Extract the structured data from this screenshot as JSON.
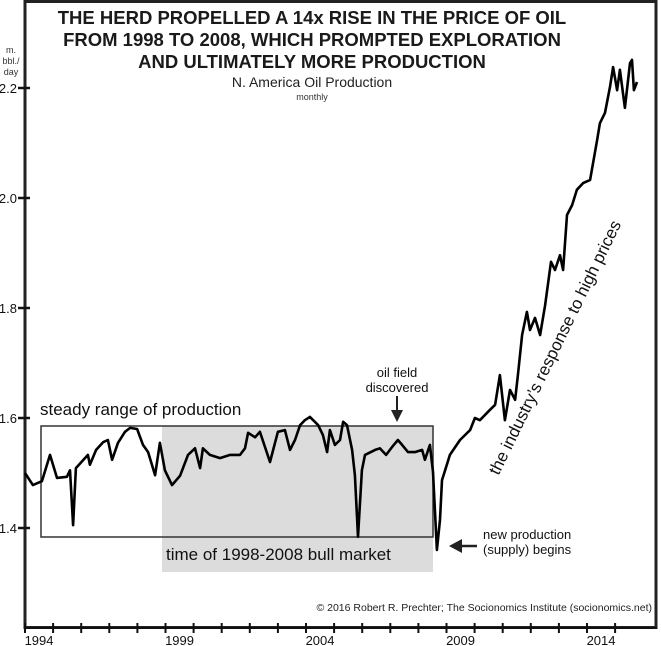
{
  "chart_data": {
    "type": "line",
    "title": "THE HERD PROPELLED A 14x RISE IN THE PRICE OF OIL FROM 1998 TO 2008, WHICH PROMPTED EXPLORATION AND ULTIMATELY MORE PRODUCTION",
    "title_lines": [
      "THE HERD PROPELLED A 14x RISE IN THE PRICE OF OIL",
      "FROM 1998 TO 2008, WHICH PROMPTED EXPLORATION",
      "AND ULTIMATELY MORE PRODUCTION"
    ],
    "subtitle": "N. America Oil Production",
    "subtitle2": "monthly",
    "ylabel_lines": [
      "m.",
      "bbl./",
      "day"
    ],
    "xlabel": "",
    "xlim": [
      1994,
      2015.9
    ],
    "ylim": [
      1.4,
      2.2
    ],
    "y_ticks": [
      "2.2",
      "2.0",
      "1.8",
      "1.6",
      "1.4"
    ],
    "x_tick_labels": [
      "1994",
      "1999",
      "2004",
      "2009",
      "2014"
    ],
    "grid": false,
    "line_color": "#000000",
    "shade_color": "#dcdcdc",
    "series": [
      {
        "x": [
          1994.0,
          1994.28,
          1994.6,
          1994.89,
          1995.14,
          1995.49,
          1995.6,
          1995.71,
          1995.81,
          1996.24,
          1996.31,
          1996.53,
          1996.78,
          1996.95,
          1997.1,
          1997.31,
          1997.56,
          1997.74,
          1997.99,
          1998.2,
          1998.38,
          1998.63,
          1998.8,
          1998.98,
          1999.23,
          1999.52,
          1999.8,
          2000.05,
          2000.23,
          2000.33,
          2000.58,
          2000.94,
          2001.3,
          2001.65,
          2001.83,
          2001.94,
          2002.19,
          2002.36,
          2002.72,
          2003.0,
          2003.25,
          2003.43,
          2003.61,
          2003.79,
          2003.96,
          2004.14,
          2004.43,
          2004.6,
          2004.75,
          2004.85,
          2005.03,
          2005.21,
          2005.32,
          2005.46,
          2005.64,
          2005.74,
          2005.85,
          2005.99,
          2006.1,
          2006.46,
          2006.63,
          2006.85,
          2007.06,
          2007.27,
          2007.42,
          2007.63,
          2007.88,
          2008.13,
          2008.23,
          2008.41,
          2008.52,
          2008.66,
          2008.77,
          2008.84,
          2008.95,
          2009.12,
          2009.48,
          2009.84,
          2010.01,
          2010.19,
          2010.55,
          2010.73,
          2010.9,
          2011.08,
          2011.26,
          2011.44,
          2011.54,
          2011.69,
          2011.86,
          2011.97,
          2012.15,
          2012.33,
          2012.51,
          2012.72,
          2012.86,
          2013.04,
          2013.15,
          2013.29,
          2013.47,
          2013.64,
          2013.86,
          2014.11,
          2014.36,
          2014.46,
          2014.64,
          2014.82,
          2014.93,
          2015.07,
          2015.17,
          2015.35,
          2015.53,
          2015.6,
          2015.67,
          2015.78
        ],
        "y": [
          1.5,
          1.478,
          1.485,
          1.533,
          1.491,
          1.493,
          1.505,
          1.405,
          1.509,
          1.533,
          1.515,
          1.542,
          1.556,
          1.56,
          1.524,
          1.555,
          1.575,
          1.582,
          1.58,
          1.551,
          1.538,
          1.496,
          1.555,
          1.505,
          1.478,
          1.495,
          1.533,
          1.545,
          1.509,
          1.545,
          1.533,
          1.527,
          1.533,
          1.533,
          1.545,
          1.573,
          1.565,
          1.575,
          1.52,
          1.575,
          1.578,
          1.542,
          1.56,
          1.587,
          1.596,
          1.602,
          1.587,
          1.569,
          1.538,
          1.578,
          1.551,
          1.56,
          1.593,
          1.587,
          1.542,
          1.496,
          1.384,
          1.505,
          1.533,
          1.542,
          1.545,
          1.533,
          1.547,
          1.56,
          1.551,
          1.538,
          1.538,
          1.542,
          1.524,
          1.551,
          1.502,
          1.36,
          1.415,
          1.487,
          1.505,
          1.533,
          1.56,
          1.578,
          1.6,
          1.596,
          1.615,
          1.624,
          1.678,
          1.596,
          1.651,
          1.633,
          1.678,
          1.751,
          1.793,
          1.76,
          1.782,
          1.751,
          1.805,
          1.884,
          1.869,
          1.896,
          1.869,
          1.969,
          1.987,
          2.015,
          2.027,
          2.033,
          2.105,
          2.136,
          2.155,
          2.202,
          2.238,
          2.196,
          2.233,
          2.164,
          2.245,
          2.251,
          2.196,
          2.211
        ]
      }
    ],
    "annotations": {
      "steady_range": "steady range of production",
      "bull_market": "time of 1998-2008 bull market",
      "oil_field_line1": "oil field",
      "oil_field_line2": "discovered",
      "new_prod_line1": "new production",
      "new_prod_line2": "(supply) begins",
      "response": "the industry’s response to high prices"
    },
    "copyright": "© 2016 Robert R. Prechter; The Socionomics Institute (socionomics.net)"
  }
}
